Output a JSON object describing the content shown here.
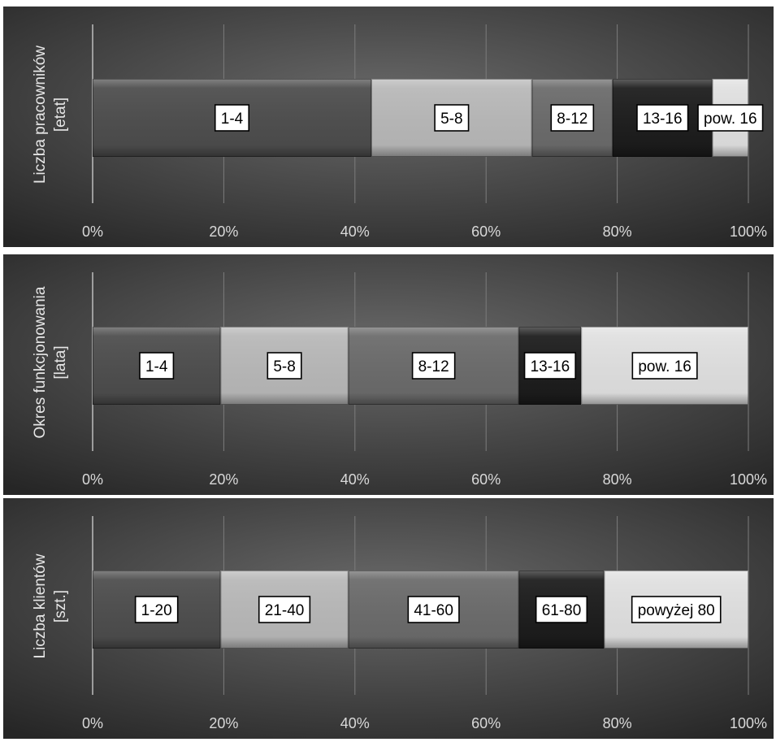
{
  "chart_data": [
    {
      "type": "bar",
      "orientation": "horizontal",
      "stacked": "percent",
      "ylabel_lines": [
        "Liczba pracowników",
        "[etat]"
      ],
      "xlim": [
        0,
        100
      ],
      "xticks": [
        "0%",
        "20%",
        "40%",
        "60%",
        "80%",
        "100%"
      ],
      "grid": true,
      "segments": [
        {
          "label": "1-4",
          "value": 42.5,
          "color": "#4d4d4d"
        },
        {
          "label": "5-8",
          "value": 24.5,
          "color": "#b8b8b8"
        },
        {
          "label": "8-12",
          "value": 12.3,
          "color": "#6b6b6b"
        },
        {
          "label": "13-16",
          "value": 15.2,
          "color": "#1c1c1c"
        },
        {
          "label": "pow. 16",
          "value": 5.5,
          "color": "#e0e0e0"
        }
      ]
    },
    {
      "type": "bar",
      "orientation": "horizontal",
      "stacked": "percent",
      "ylabel_lines": [
        "Okres funkcjonowania",
        "[lata]"
      ],
      "xlim": [
        0,
        100
      ],
      "xticks": [
        "0%",
        "20%",
        "40%",
        "60%",
        "80%",
        "100%"
      ],
      "grid": true,
      "segments": [
        {
          "label": "1-4",
          "value": 19.5,
          "color": "#4d4d4d"
        },
        {
          "label": "5-8",
          "value": 19.5,
          "color": "#b8b8b8"
        },
        {
          "label": "8-12",
          "value": 26,
          "color": "#6b6b6b"
        },
        {
          "label": "13-16",
          "value": 9.5,
          "color": "#1c1c1c"
        },
        {
          "label": "pow. 16",
          "value": 25.5,
          "color": "#e0e0e0"
        }
      ]
    },
    {
      "type": "bar",
      "orientation": "horizontal",
      "stacked": "percent",
      "ylabel_lines": [
        "Liczba klientów",
        "[szt.]"
      ],
      "xlim": [
        0,
        100
      ],
      "xticks": [
        "0%",
        "20%",
        "40%",
        "60%",
        "80%",
        "100%"
      ],
      "grid": true,
      "segments": [
        {
          "label": "1-20",
          "value": 19.5,
          "color": "#4d4d4d"
        },
        {
          "label": "21-40",
          "value": 19.5,
          "color": "#b8b8b8"
        },
        {
          "label": "41-60",
          "value": 26,
          "color": "#6b6b6b"
        },
        {
          "label": "61-80",
          "value": 13,
          "color": "#1c1c1c"
        },
        {
          "label": "powyżej 80",
          "value": 22,
          "color": "#e0e0e0"
        }
      ]
    }
  ],
  "colors": {
    "panel_bg_center": "#6a6a6a",
    "panel_bg_edge": "#262626",
    "gridline": "#7c7c7c",
    "tick_text": "#d9d9d9"
  }
}
